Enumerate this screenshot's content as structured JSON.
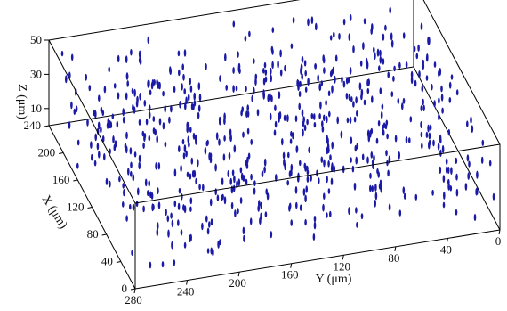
{
  "chart_data": {
    "type": "scatter",
    "subtype": "3d-scatter",
    "title": "",
    "marker": "vertical ellipse (elongated along Z)",
    "marker_color": "#1a1aa6",
    "box_color": "#000000",
    "grid": false,
    "legend": "none",
    "axes": {
      "x": {
        "label": "X (μm)",
        "range": [
          0,
          240
        ],
        "ticks": [
          "0",
          "40",
          "80",
          "120",
          "160",
          "200",
          "240"
        ]
      },
      "y": {
        "label": "Y (μm)",
        "range": [
          0,
          280
        ],
        "reversed": true,
        "ticks": [
          "280",
          "240",
          "200",
          "160",
          "120",
          "80",
          "40",
          "0"
        ]
      },
      "z": {
        "label": "Z (μm)",
        "range": [
          0,
          50
        ],
        "ticks": [
          "10",
          "30",
          "50"
        ]
      }
    },
    "point_count_estimate": 650,
    "points_note": "Points distributed approximately uniformly over X 0–240, Y 0–280; Z mostly 5–45 μm"
  }
}
